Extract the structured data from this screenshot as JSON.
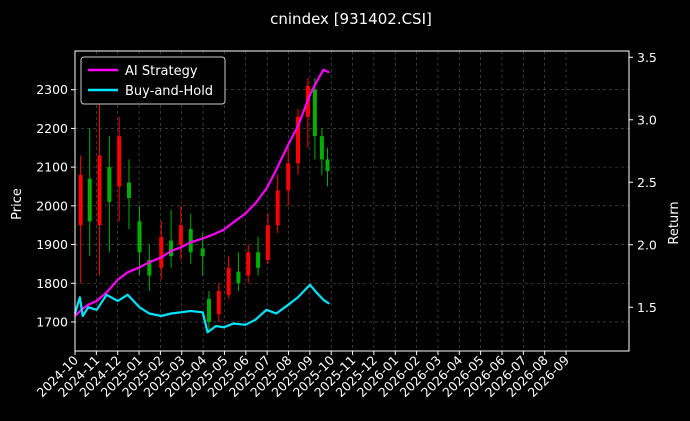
{
  "chart_data": {
    "type": "line",
    "title": "cnindex [931402.CSI]",
    "ylabel_left": "Price",
    "ylabel_right": "Return",
    "ylim_left": [
      1625,
      2400
    ],
    "ylim_right": [
      1.15,
      3.55
    ],
    "yticks_left": [
      "1700",
      "1800",
      "1900",
      "2000",
      "2100",
      "2200",
      "2300"
    ],
    "yticks_right": [
      "1.5",
      "2.0",
      "2.5",
      "3.0",
      "3.5"
    ],
    "x_ticks": [
      "2024-10",
      "2024-11",
      "2024-12",
      "2025-01",
      "2025-02",
      "2025-03",
      "2025-04",
      "2025-05",
      "2025-06",
      "2025-07",
      "2025-08",
      "2025-09",
      "2025-10",
      "2025-11",
      "2025-12",
      "2026-01",
      "2026-02",
      "2026-03",
      "2026-04",
      "2026-05",
      "2026-06",
      "2026-07",
      "2026-08",
      "2026-09"
    ],
    "grid": true,
    "legend_position": "top-left",
    "series": [
      {
        "name": "AI Strategy",
        "color": "#ff00ff",
        "axis": "right",
        "x": [
          "2024-10-01",
          "2024-10-10",
          "2024-10-20",
          "2024-11-01",
          "2024-11-15",
          "2024-12-01",
          "2024-12-15",
          "2025-01-01",
          "2025-01-15",
          "2025-02-01",
          "2025-02-15",
          "2025-03-01",
          "2025-03-15",
          "2025-04-01",
          "2025-04-15",
          "2025-05-01",
          "2025-05-15",
          "2025-06-01",
          "2025-06-15",
          "2025-07-01",
          "2025-07-15",
          "2025-08-01",
          "2025-08-15",
          "2025-09-01",
          "2025-09-10",
          "2025-09-20",
          "2025-09-28"
        ],
        "values": [
          1.43,
          1.48,
          1.52,
          1.55,
          1.62,
          1.72,
          1.78,
          1.82,
          1.86,
          1.9,
          1.95,
          1.98,
          2.02,
          2.05,
          2.08,
          2.12,
          2.18,
          2.25,
          2.33,
          2.45,
          2.6,
          2.8,
          2.95,
          3.2,
          3.3,
          3.4,
          3.38
        ]
      },
      {
        "name": "Buy-and-Hold",
        "color": "#00e5ff",
        "axis": "right",
        "x": [
          "2024-10-01",
          "2024-10-08",
          "2024-10-12",
          "2024-10-20",
          "2024-11-01",
          "2024-11-15",
          "2024-12-01",
          "2024-12-15",
          "2025-01-01",
          "2025-01-15",
          "2025-02-01",
          "2025-02-15",
          "2025-03-01",
          "2025-03-15",
          "2025-04-01",
          "2025-04-08",
          "2025-04-20",
          "2025-05-01",
          "2025-05-15",
          "2025-06-01",
          "2025-06-15",
          "2025-07-01",
          "2025-07-15",
          "2025-08-01",
          "2025-08-15",
          "2025-09-01",
          "2025-09-10",
          "2025-09-20",
          "2025-09-28"
        ],
        "values": [
          1.45,
          1.58,
          1.43,
          1.5,
          1.48,
          1.6,
          1.55,
          1.6,
          1.5,
          1.45,
          1.43,
          1.45,
          1.46,
          1.47,
          1.46,
          1.3,
          1.35,
          1.34,
          1.37,
          1.36,
          1.4,
          1.48,
          1.45,
          1.52,
          1.58,
          1.68,
          1.62,
          1.56,
          1.53
        ]
      }
    ],
    "candles": [
      {
        "x": "2024-10-09",
        "o": 1950,
        "c": 2080,
        "h": 2130,
        "l": 1800
      },
      {
        "x": "2024-10-22",
        "o": 2070,
        "c": 1960,
        "h": 2200,
        "l": 1870
      },
      {
        "x": "2024-11-05",
        "o": 1950,
        "c": 2130,
        "h": 2280,
        "l": 1820
      },
      {
        "x": "2024-11-19",
        "o": 2100,
        "c": 2010,
        "h": 2180,
        "l": 1880
      },
      {
        "x": "2024-12-03",
        "o": 2050,
        "c": 2180,
        "h": 2230,
        "l": 1960
      },
      {
        "x": "2024-12-17",
        "o": 2060,
        "c": 2020,
        "h": 2120,
        "l": 1940
      },
      {
        "x": "2025-01-01",
        "o": 1960,
        "c": 1880,
        "h": 2000,
        "l": 1820
      },
      {
        "x": "2025-01-15",
        "o": 1860,
        "c": 1820,
        "h": 1900,
        "l": 1780
      },
      {
        "x": "2025-02-01",
        "o": 1840,
        "c": 1920,
        "h": 1960,
        "l": 1810
      },
      {
        "x": "2025-02-15",
        "o": 1910,
        "c": 1870,
        "h": 1990,
        "l": 1840
      },
      {
        "x": "2025-03-01",
        "o": 1900,
        "c": 1950,
        "h": 2000,
        "l": 1860
      },
      {
        "x": "2025-03-15",
        "o": 1940,
        "c": 1880,
        "h": 1980,
        "l": 1850
      },
      {
        "x": "2025-04-01",
        "o": 1890,
        "c": 1870,
        "h": 1930,
        "l": 1820
      },
      {
        "x": "2025-04-10",
        "o": 1760,
        "c": 1700,
        "h": 1780,
        "l": 1680
      },
      {
        "x": "2025-04-24",
        "o": 1720,
        "c": 1780,
        "h": 1800,
        "l": 1700
      },
      {
        "x": "2025-05-08",
        "o": 1770,
        "c": 1840,
        "h": 1870,
        "l": 1760
      },
      {
        "x": "2025-05-22",
        "o": 1830,
        "c": 1800,
        "h": 1880,
        "l": 1780
      },
      {
        "x": "2025-06-05",
        "o": 1820,
        "c": 1880,
        "h": 1900,
        "l": 1800
      },
      {
        "x": "2025-06-19",
        "o": 1880,
        "c": 1840,
        "h": 1920,
        "l": 1820
      },
      {
        "x": "2025-07-03",
        "o": 1860,
        "c": 1950,
        "h": 1980,
        "l": 1850
      },
      {
        "x": "2025-07-17",
        "o": 1950,
        "c": 2040,
        "h": 2080,
        "l": 1930
      },
      {
        "x": "2025-08-01",
        "o": 2040,
        "c": 2110,
        "h": 2150,
        "l": 2000
      },
      {
        "x": "2025-08-15",
        "o": 2110,
        "c": 2230,
        "h": 2250,
        "l": 2080
      },
      {
        "x": "2025-08-29",
        "o": 2230,
        "c": 2310,
        "h": 2330,
        "l": 2150
      },
      {
        "x": "2025-09-08",
        "o": 2300,
        "c": 2180,
        "h": 2330,
        "l": 2120
      },
      {
        "x": "2025-09-18",
        "o": 2180,
        "c": 2120,
        "h": 2200,
        "l": 2080
      },
      {
        "x": "2025-09-26",
        "o": 2120,
        "c": 2090,
        "h": 2150,
        "l": 2050
      }
    ],
    "candle_up_color": "#ff0000",
    "candle_down_color": "#00b000"
  }
}
